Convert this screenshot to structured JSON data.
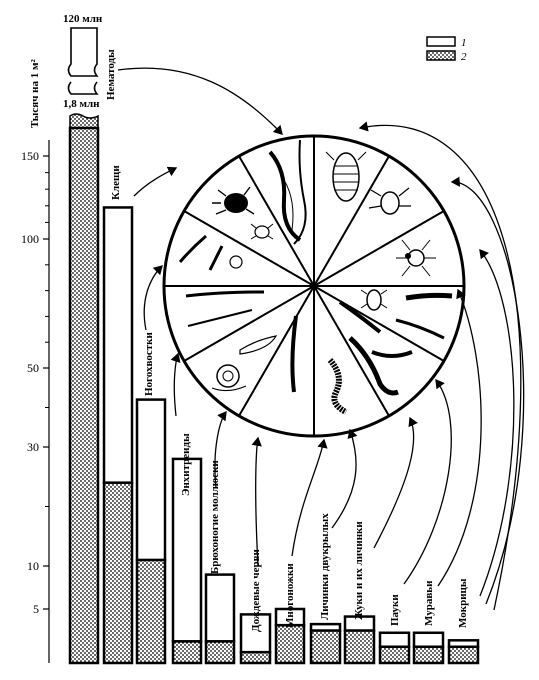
{
  "chart_data": {
    "type": "bar",
    "ylabel": "Тысяч на 1 м²",
    "yticks": [
      5,
      10,
      30,
      50,
      100,
      150
    ],
    "ylim": [
      0,
      170
    ],
    "break_labels": {
      "top": "120 млн",
      "bottom": "1,8 млн",
      "name": "Нематоды"
    },
    "legend": [
      {
        "key": "1",
        "fill": "white"
      },
      {
        "key": "2",
        "fill": "stipple"
      }
    ],
    "categories": [
      "Нематоды",
      "Клещи",
      "Ногохвостки",
      "Энхитреиды",
      "Брюхоногие моллюски",
      "Дождевые черви",
      "Многоножки",
      "Личинки двукрылых",
      "Жуки и их личинки",
      "Пауки",
      "Муравьи",
      "Мокрицы"
    ],
    "series": [
      {
        "key": "1",
        "values": [
          0,
          95,
          31,
          26,
          7,
          3.5,
          1.5,
          0.6,
          1.3,
          1.3,
          1.3,
          0.6
        ]
      },
      {
        "key": "2",
        "values": [
          168,
          24,
          11,
          2,
          2,
          1,
          3.5,
          3,
          3,
          1.5,
          1.5,
          1.5
        ]
      }
    ],
    "totals": [
      168,
      119,
      42,
      28,
      9,
      4.5,
      5,
      3.6,
      4.3,
      2.8,
      2.8,
      2.1
    ],
    "legend_colors": {
      "ink": "#000000",
      "paper": "#ffffff"
    },
    "pictogram_icons": [
      "oribatid-mite-icon",
      "tick-icon",
      "woodlouse-icon",
      "nematode-icon",
      "springtail-icon",
      "gamasid-mite-icon",
      "spider-icon",
      "beetle-icon",
      "beetle-larva-icon",
      "fly-larva-icon",
      "earthworm-icon",
      "millipede-icon",
      "centipede-icon",
      "snail-icon",
      "slug-icon",
      "enchytraeid-worm-icon"
    ]
  }
}
